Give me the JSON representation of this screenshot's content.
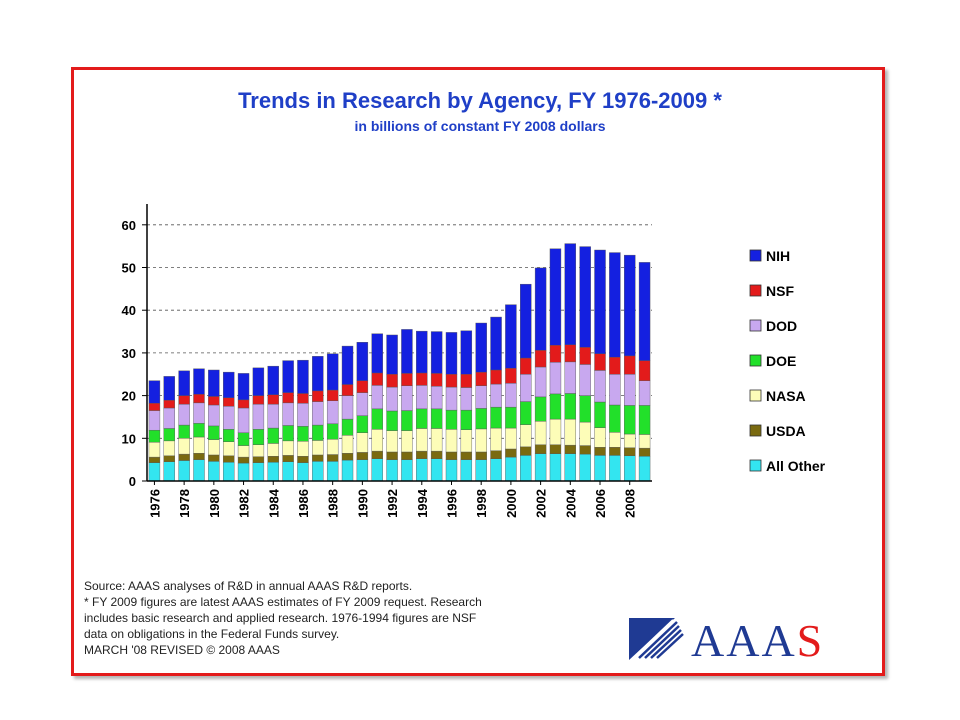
{
  "title": "Trends in Research by Agency, FY 1976-2009 *",
  "subtitle": "in billions of constant FY 2008 dollars",
  "notes": [
    "Source: AAAS analyses of R&D in annual AAAS R&D reports.",
    "* FY 2009 figures are latest AAAS estimates of FY 2009 request. Research",
    "includes basic research and applied research. 1976-1994 figures are NSF",
    "data on  obligations in the Federal Funds survey.",
    "MARCH '08 REVISED © 2008 AAAS"
  ],
  "logo": {
    "text": "AAAS",
    "color_dark": "#1f3a93",
    "color_accent": "#e31b1b"
  },
  "colors": {
    "frame": "#e31b1b",
    "title": "#1f3fc7"
  },
  "chart_data": {
    "type": "bar",
    "stacked": true,
    "ylim": [
      0,
      63
    ],
    "yticks": [
      0,
      10,
      20,
      30,
      40,
      50,
      60
    ],
    "grid": true,
    "legend_position": "right",
    "categories": [
      "1976",
      "1977",
      "1978",
      "1979",
      "1980",
      "1981",
      "1982",
      "1983",
      "1984",
      "1985",
      "1986",
      "1987",
      "1988",
      "1989",
      "1990",
      "1991",
      "1992",
      "1993",
      "1994",
      "1995",
      "1996",
      "1997",
      "1998",
      "1999",
      "2000",
      "2001",
      "2002",
      "2003",
      "2004",
      "2005",
      "2006",
      "2007",
      "2008",
      "2009"
    ],
    "xtick_labels": [
      "1976",
      "1978",
      "1980",
      "1982",
      "1984",
      "1986",
      "1988",
      "1990",
      "1992",
      "1994",
      "1996",
      "1998",
      "2000",
      "2002",
      "2004",
      "2006",
      "2008"
    ],
    "series": [
      {
        "name": "All Other",
        "color": "#33e5f0",
        "values": [
          4.3,
          4.5,
          4.8,
          5.0,
          4.6,
          4.4,
          4.2,
          4.3,
          4.4,
          4.5,
          4.3,
          4.6,
          4.6,
          4.9,
          5.0,
          5.2,
          5.0,
          5.0,
          5.2,
          5.2,
          5.0,
          5.0,
          5.0,
          5.2,
          5.6,
          6.0,
          6.4,
          6.4,
          6.4,
          6.3,
          6.0,
          6.0,
          5.9,
          5.8
        ]
      },
      {
        "name": "USDA",
        "color": "#7a6a10",
        "values": [
          1.3,
          1.4,
          1.5,
          1.5,
          1.5,
          1.5,
          1.4,
          1.4,
          1.4,
          1.5,
          1.5,
          1.5,
          1.6,
          1.6,
          1.7,
          1.8,
          1.8,
          1.8,
          1.8,
          1.8,
          1.8,
          1.8,
          1.8,
          1.9,
          1.9,
          2.0,
          2.1,
          2.1,
          2.0,
          2.0,
          1.9,
          1.9,
          1.9,
          1.9
        ]
      },
      {
        "name": "NASA",
        "color": "#fdfdb8",
        "values": [
          3.5,
          3.5,
          3.7,
          3.8,
          3.6,
          3.3,
          2.7,
          2.8,
          3.0,
          3.4,
          3.5,
          3.4,
          3.6,
          4.2,
          4.6,
          5.1,
          5.0,
          5.0,
          5.3,
          5.3,
          5.3,
          5.2,
          5.4,
          5.3,
          4.9,
          5.2,
          5.5,
          6.0,
          6.1,
          5.5,
          4.6,
          3.5,
          3.2,
          3.2
        ]
      },
      {
        "name": "DOE",
        "color": "#22e02a",
        "values": [
          2.8,
          2.9,
          3.1,
          3.2,
          3.2,
          2.9,
          3.0,
          3.6,
          3.6,
          3.6,
          3.5,
          3.6,
          3.6,
          3.8,
          4.0,
          4.8,
          4.6,
          4.7,
          4.6,
          4.6,
          4.5,
          4.6,
          4.8,
          4.9,
          4.9,
          5.4,
          5.7,
          5.9,
          6.0,
          6.2,
          6.0,
          6.4,
          6.7,
          6.8
        ]
      },
      {
        "name": "DOD",
        "color": "#c8a8ef",
        "values": [
          4.6,
          4.8,
          4.9,
          4.8,
          4.9,
          5.4,
          5.8,
          5.9,
          5.6,
          5.3,
          5.4,
          5.5,
          5.4,
          5.5,
          5.4,
          5.5,
          5.6,
          5.8,
          5.5,
          5.3,
          5.4,
          5.3,
          5.3,
          5.4,
          5.6,
          6.4,
          7.0,
          7.4,
          7.4,
          7.3,
          7.4,
          7.2,
          7.3,
          5.8
        ]
      },
      {
        "name": "NSF",
        "color": "#e31b1b",
        "values": [
          1.7,
          1.8,
          2.0,
          2.0,
          2.0,
          2.0,
          1.9,
          2.0,
          2.2,
          2.4,
          2.3,
          2.5,
          2.5,
          2.6,
          2.8,
          2.9,
          3.0,
          2.9,
          2.9,
          3.0,
          3.0,
          3.1,
          3.2,
          3.3,
          3.5,
          3.8,
          3.9,
          4.0,
          4.0,
          4.0,
          3.9,
          4.0,
          4.3,
          4.7
        ]
      },
      {
        "name": "NIH",
        "color": "#1420e0",
        "values": [
          5.3,
          5.6,
          5.8,
          6.0,
          6.2,
          6.0,
          6.2,
          6.5,
          6.7,
          7.5,
          7.8,
          8.1,
          8.5,
          9.0,
          9.0,
          9.2,
          9.2,
          10.3,
          9.8,
          9.8,
          9.8,
          10.2,
          11.5,
          12.4,
          14.9,
          17.3,
          19.3,
          22.6,
          23.7,
          23.6,
          24.3,
          24.5,
          23.6,
          23.0
        ]
      }
    ]
  }
}
